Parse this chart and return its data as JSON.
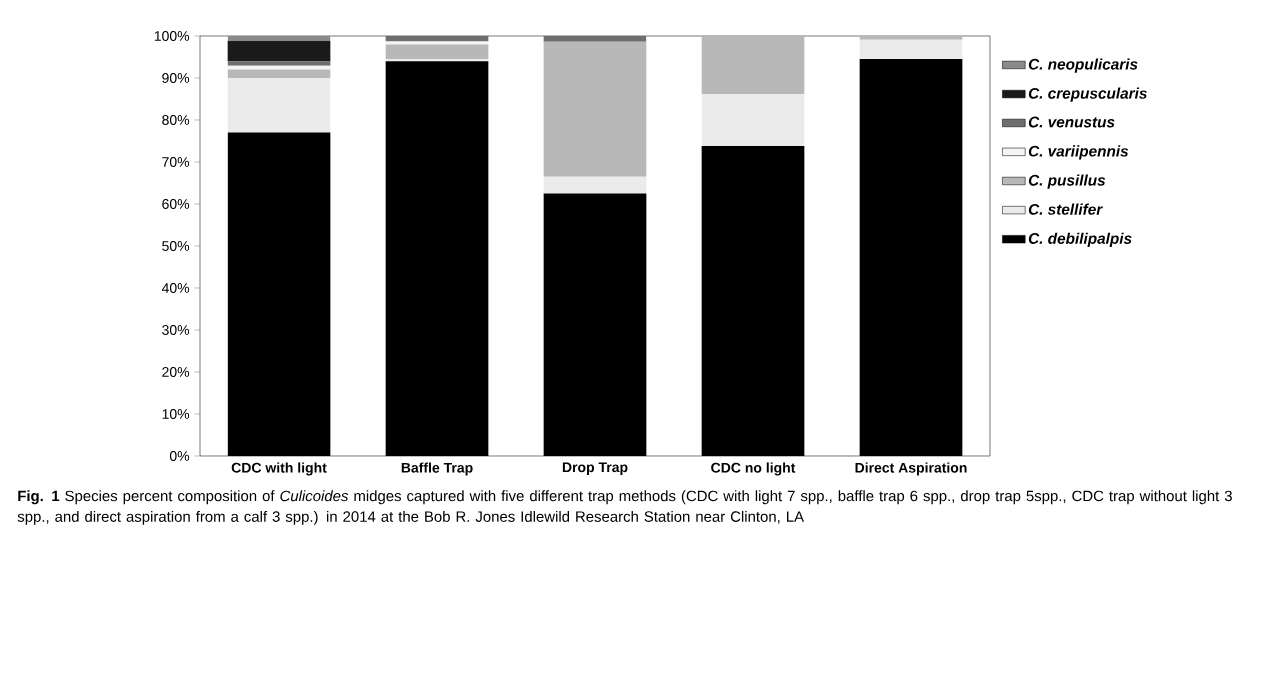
{
  "chart_data": {
    "type": "bar",
    "stacked": true,
    "legend": "right",
    "grid": false,
    "categories": [
      "CDC with light",
      "Baffle Trap",
      "Drop Trap",
      "CDC no light",
      "Direct Aspiration"
    ],
    "series": [
      {
        "name": "C. debilipalpis",
        "color": "#000000",
        "values": [
          77.0,
          94.0,
          62.5,
          73.8,
          94.5
        ]
      },
      {
        "name": "C. stellifer",
        "color": "#ebebeb",
        "values": [
          13.0,
          0.5,
          4.0,
          12.3,
          4.6
        ]
      },
      {
        "name": "C. pusillus",
        "color": "#b8b8b8",
        "values": [
          2.0,
          3.5,
          32.1,
          13.9,
          0.9
        ]
      },
      {
        "name": "C. variipennis",
        "color": "#f4f4f4",
        "values": [
          0.9,
          0.7,
          null,
          null,
          null
        ]
      },
      {
        "name": "C. venustus",
        "color": "#6e6e6e",
        "values": [
          1.0,
          1.3,
          1.4,
          null,
          null
        ]
      },
      {
        "name": "C. crepuscularis",
        "color": "#1a1a1a",
        "values": [
          4.9,
          null,
          null,
          null,
          null
        ]
      },
      {
        "name": "C. neopulicaris",
        "color": "#8a8a8a",
        "values": [
          1.2,
          null,
          null,
          null,
          null
        ]
      }
    ],
    "ylim": [
      0,
      100
    ],
    "yticks": [
      {
        "value": 0,
        "label": "0%"
      },
      {
        "value": 10,
        "label": "10%"
      },
      {
        "value": 20,
        "label": "20%"
      },
      {
        "value": 30,
        "label": "30%"
      },
      {
        "value": 40,
        "label": "40%"
      },
      {
        "value": 50,
        "label": "50%"
      },
      {
        "value": 60,
        "label": "60%"
      },
      {
        "value": 70,
        "label": "70%"
      },
      {
        "value": 80,
        "label": "80%"
      },
      {
        "value": 90,
        "label": "90%"
      },
      {
        "value": 100,
        "label": "100%"
      }
    ],
    "annotations": [
      "**Fig. 1** Species percent composition of *Culicoides* midges captured with five different trap methods (CDC with light 7 spp., baffle trap 6 spp., drop trap 5spp., CDC trap without light 3 spp., and direct aspiration from a calf 3 spp.) in 2014 at the Bob R. Jones Idlewild Research Station near Clinton, LA"
    ]
  }
}
